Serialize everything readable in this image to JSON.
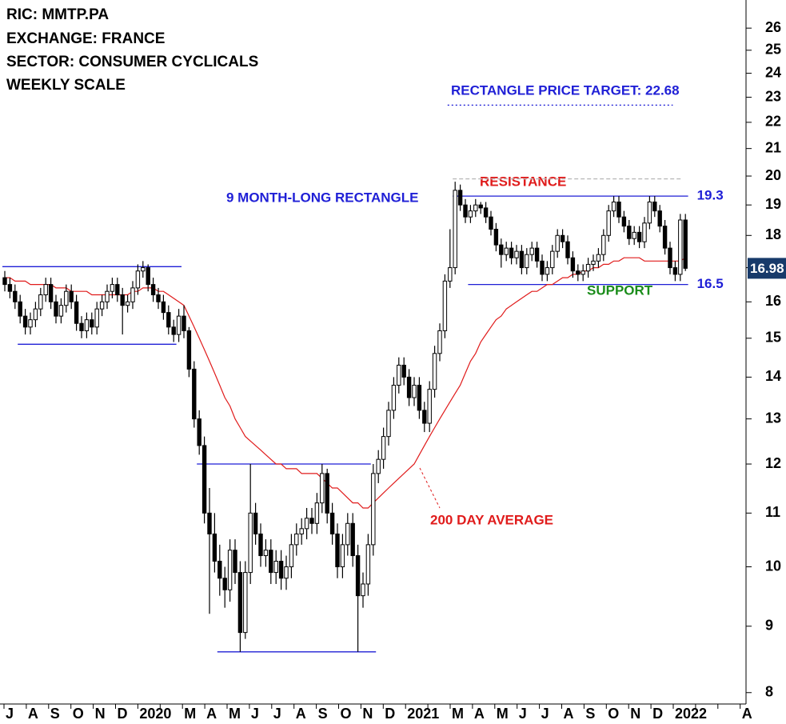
{
  "chart_data": {
    "type": "candlestick",
    "header": [
      "RIC: MMTP.PA",
      "EXCHANGE: FRANCE",
      "SECTOR: CONSUMER CYCLICALS",
      "WEEKLY SCALE"
    ],
    "annotations": [
      {
        "text": "RECTANGLE PRICE TARGET: 22.68",
        "color": "#1f1fd6"
      },
      {
        "text": "RESISTANCE",
        "color": "#e01b1b"
      },
      {
        "text": "9 MONTH-LONG RECTANGLE",
        "color": "#1f1fd6"
      },
      {
        "text": "SUPPORT",
        "color": "#1a8c1a"
      },
      {
        "text": "200 DAY AVERAGE",
        "color": "#e01b1b"
      }
    ],
    "log_scale": true,
    "ylim": [
      7.84,
      27.33
    ],
    "yticks": [
      8,
      9,
      10,
      11,
      12,
      13,
      14,
      15,
      16,
      17,
      18,
      19,
      20,
      21,
      22,
      23,
      24,
      25,
      26
    ],
    "months": [
      "J",
      "A",
      "S",
      "O",
      "N",
      "D",
      "2020",
      null,
      "M",
      "A",
      "M",
      "J",
      "J",
      "A",
      "S",
      "O",
      "N",
      "D",
      "2021",
      null,
      "M",
      "A",
      "M",
      "J",
      "J",
      "A",
      "S",
      "O",
      "N",
      "D",
      "2022",
      null,
      null,
      "A"
    ],
    "candle_colors": {
      "up": "#ffffff",
      "down": "#000000",
      "edge": "#000000"
    },
    "candles": [
      [
        16.7,
        16.9,
        16.3,
        16.5
      ],
      [
        16.5,
        16.7,
        16.1,
        16.3
      ],
      [
        16.3,
        16.5,
        15.8,
        16.0
      ],
      [
        16.0,
        16.2,
        15.4,
        15.6
      ],
      [
        15.6,
        15.8,
        15.1,
        15.3
      ],
      [
        15.3,
        15.7,
        15.1,
        15.5
      ],
      [
        15.5,
        16.0,
        15.3,
        15.8
      ],
      [
        15.8,
        16.4,
        15.6,
        16.2
      ],
      [
        16.2,
        16.7,
        16.0,
        16.5
      ],
      [
        16.5,
        16.7,
        15.8,
        16.0
      ],
      [
        16.0,
        16.2,
        15.4,
        15.6
      ],
      [
        15.6,
        16.1,
        15.4,
        15.9
      ],
      [
        15.9,
        16.5,
        15.7,
        16.3
      ],
      [
        16.3,
        16.5,
        15.8,
        16.0
      ],
      [
        16.0,
        16.2,
        15.2,
        15.4
      ],
      [
        15.4,
        15.6,
        15.0,
        15.2
      ],
      [
        15.2,
        15.7,
        15.0,
        15.5
      ],
      [
        15.5,
        15.7,
        15.1,
        15.3
      ],
      [
        15.3,
        16.0,
        15.1,
        15.8
      ],
      [
        15.8,
        16.2,
        15.6,
        16.0
      ],
      [
        16.0,
        16.5,
        15.8,
        16.3
      ],
      [
        16.3,
        16.7,
        16.1,
        16.5
      ],
      [
        16.5,
        16.7,
        16.0,
        16.2
      ],
      [
        16.2,
        16.4,
        15.1,
        15.9
      ],
      [
        15.9,
        16.2,
        15.7,
        16.0
      ],
      [
        16.0,
        16.6,
        15.8,
        16.4
      ],
      [
        16.4,
        17.1,
        16.2,
        16.9
      ],
      [
        16.9,
        17.2,
        16.7,
        17.0
      ],
      [
        17.0,
        17.1,
        16.3,
        16.5
      ],
      [
        16.5,
        16.7,
        16.0,
        16.2
      ],
      [
        16.2,
        16.4,
        15.8,
        16.0
      ],
      [
        16.0,
        16.2,
        15.5,
        15.7
      ],
      [
        15.7,
        15.9,
        15.1,
        15.3
      ],
      [
        15.3,
        15.5,
        14.9,
        15.1
      ],
      [
        15.1,
        15.8,
        14.9,
        15.6
      ],
      [
        15.6,
        15.9,
        15.0,
        15.2
      ],
      [
        15.2,
        15.3,
        14.0,
        14.2
      ],
      [
        14.2,
        14.4,
        12.8,
        13.0
      ],
      [
        13.0,
        13.2,
        12.2,
        12.4
      ],
      [
        12.4,
        12.6,
        10.8,
        11.0
      ],
      [
        11.0,
        11.5,
        9.2,
        10.6
      ],
      [
        10.6,
        11.0,
        9.9,
        10.1
      ],
      [
        10.1,
        10.4,
        9.5,
        9.8
      ],
      [
        9.8,
        10.0,
        9.3,
        9.6
      ],
      [
        9.6,
        10.5,
        9.4,
        10.3
      ],
      [
        10.3,
        10.5,
        9.7,
        9.9
      ],
      [
        9.9,
        10.1,
        8.6,
        8.9
      ],
      [
        8.9,
        10.1,
        8.8,
        9.9
      ],
      [
        9.9,
        12.0,
        9.7,
        11.0
      ],
      [
        11.0,
        11.2,
        10.4,
        10.6
      ],
      [
        10.6,
        10.8,
        10.0,
        10.2
      ],
      [
        10.2,
        10.5,
        10.0,
        10.3
      ],
      [
        10.3,
        10.5,
        9.7,
        9.9
      ],
      [
        9.9,
        10.3,
        9.7,
        10.1
      ],
      [
        10.1,
        10.3,
        9.6,
        9.8
      ],
      [
        9.8,
        10.2,
        9.6,
        10.0
      ],
      [
        10.0,
        10.6,
        9.8,
        10.4
      ],
      [
        10.4,
        10.8,
        10.2,
        10.6
      ],
      [
        10.6,
        10.9,
        10.4,
        10.7
      ],
      [
        10.7,
        11.1,
        10.5,
        10.9
      ],
      [
        10.9,
        11.1,
        10.6,
        10.8
      ],
      [
        10.8,
        11.4,
        10.6,
        11.2
      ],
      [
        11.2,
        12.0,
        11.0,
        11.8
      ],
      [
        11.8,
        11.9,
        10.8,
        11.0
      ],
      [
        11.0,
        11.2,
        10.4,
        10.6
      ],
      [
        10.6,
        10.8,
        9.8,
        10.0
      ],
      [
        10.0,
        10.6,
        9.8,
        10.4
      ],
      [
        10.4,
        11.0,
        10.2,
        10.8
      ],
      [
        10.8,
        11.0,
        10.0,
        10.2
      ],
      [
        10.2,
        10.4,
        8.6,
        9.5
      ],
      [
        9.5,
        9.9,
        9.3,
        9.7
      ],
      [
        9.7,
        10.6,
        9.5,
        10.4
      ],
      [
        10.4,
        12.0,
        10.2,
        11.8
      ],
      [
        11.8,
        12.3,
        11.6,
        12.1
      ],
      [
        12.1,
        12.8,
        11.9,
        12.6
      ],
      [
        12.6,
        13.4,
        12.4,
        13.2
      ],
      [
        13.2,
        14.0,
        13.0,
        13.8
      ],
      [
        13.8,
        14.5,
        13.6,
        14.3
      ],
      [
        14.3,
        14.5,
        13.8,
        14.0
      ],
      [
        14.0,
        14.2,
        13.3,
        13.5
      ],
      [
        13.5,
        14.0,
        13.3,
        13.8
      ],
      [
        13.8,
        14.0,
        13.0,
        13.2
      ],
      [
        13.2,
        13.4,
        12.7,
        12.9
      ],
      [
        12.9,
        13.9,
        12.7,
        13.7
      ],
      [
        13.7,
        14.8,
        13.5,
        14.6
      ],
      [
        14.6,
        15.4,
        14.4,
        15.2
      ],
      [
        15.2,
        16.8,
        15.0,
        16.6
      ],
      [
        16.6,
        18.2,
        16.4,
        17.0
      ],
      [
        17.0,
        19.8,
        16.8,
        19.5
      ],
      [
        19.5,
        19.7,
        18.8,
        19.0
      ],
      [
        19.0,
        19.2,
        18.4,
        18.6
      ],
      [
        18.6,
        19.0,
        18.4,
        18.8
      ],
      [
        18.8,
        19.2,
        18.6,
        19.0
      ],
      [
        19.0,
        19.1,
        18.7,
        18.9
      ],
      [
        18.9,
        19.1,
        18.4,
        18.6
      ],
      [
        18.6,
        18.8,
        18.0,
        18.2
      ],
      [
        18.2,
        18.4,
        17.5,
        17.7
      ],
      [
        17.7,
        17.9,
        17.0,
        17.4
      ],
      [
        17.4,
        17.8,
        17.2,
        17.6
      ],
      [
        17.6,
        17.8,
        17.1,
        17.3
      ],
      [
        17.3,
        17.7,
        17.1,
        17.5
      ],
      [
        17.5,
        17.7,
        16.8,
        17.0
      ],
      [
        17.0,
        17.6,
        16.8,
        17.4
      ],
      [
        17.4,
        17.8,
        17.2,
        17.6
      ],
      [
        17.6,
        17.8,
        17.0,
        17.2
      ],
      [
        17.2,
        17.4,
        16.6,
        16.8
      ],
      [
        16.8,
        17.2,
        16.6,
        17.0
      ],
      [
        17.0,
        17.7,
        16.8,
        17.5
      ],
      [
        17.5,
        18.2,
        17.3,
        18.0
      ],
      [
        18.0,
        18.2,
        17.6,
        17.8
      ],
      [
        17.8,
        18.0,
        17.1,
        17.3
      ],
      [
        17.3,
        17.5,
        16.7,
        16.9
      ],
      [
        16.9,
        17.1,
        16.6,
        16.8
      ],
      [
        16.8,
        17.1,
        16.6,
        16.9
      ],
      [
        16.9,
        17.3,
        16.7,
        17.1
      ],
      [
        17.1,
        17.4,
        16.9,
        17.2
      ],
      [
        17.2,
        17.6,
        17.0,
        17.4
      ],
      [
        17.4,
        18.2,
        17.2,
        18.0
      ],
      [
        18.0,
        19.0,
        17.8,
        18.8
      ],
      [
        18.8,
        19.3,
        18.6,
        19.1
      ],
      [
        19.1,
        19.3,
        18.4,
        18.6
      ],
      [
        18.6,
        18.8,
        18.1,
        18.3
      ],
      [
        18.3,
        18.5,
        17.7,
        17.9
      ],
      [
        17.9,
        18.3,
        17.7,
        18.1
      ],
      [
        18.1,
        18.3,
        17.6,
        17.8
      ],
      [
        17.8,
        18.6,
        17.6,
        18.4
      ],
      [
        18.4,
        19.3,
        18.2,
        19.1
      ],
      [
        19.1,
        19.3,
        18.6,
        18.8
      ],
      [
        18.8,
        19.0,
        18.1,
        18.3
      ],
      [
        18.3,
        18.5,
        17.4,
        17.6
      ],
      [
        17.6,
        17.8,
        16.8,
        17.0
      ],
      [
        17.0,
        17.2,
        16.6,
        16.8
      ],
      [
        16.8,
        18.7,
        16.6,
        18.5
      ],
      [
        18.5,
        18.7,
        16.9,
        16.98
      ]
    ],
    "moving_average": {
      "color": "#e01b1b",
      "values": [
        16.7,
        16.7,
        16.6,
        16.6,
        16.6,
        16.5,
        16.5,
        16.5,
        16.5,
        16.5,
        16.4,
        16.4,
        16.4,
        16.3,
        16.3,
        16.3,
        16.3,
        16.2,
        16.2,
        16.2,
        16.2,
        16.2,
        16.2,
        16.2,
        16.2,
        16.3,
        16.3,
        16.4,
        16.4,
        16.4,
        16.3,
        16.3,
        16.2,
        16.1,
        16.0,
        15.9,
        15.6,
        15.3,
        15.0,
        14.7,
        14.4,
        14.1,
        13.8,
        13.5,
        13.3,
        13.0,
        12.8,
        12.6,
        12.5,
        12.4,
        12.3,
        12.2,
        12.1,
        12.0,
        12.0,
        11.9,
        11.9,
        11.9,
        11.8,
        11.8,
        11.8,
        11.8,
        11.7,
        11.6,
        11.5,
        11.5,
        11.4,
        11.3,
        11.2,
        11.2,
        11.1,
        11.1,
        11.2,
        11.3,
        11.4,
        11.5,
        11.6,
        11.7,
        11.8,
        11.9,
        12.0,
        12.2,
        12.4,
        12.6,
        12.8,
        13.0,
        13.2,
        13.4,
        13.6,
        13.8,
        14.1,
        14.4,
        14.6,
        14.9,
        15.1,
        15.3,
        15.5,
        15.6,
        15.8,
        15.9,
        16.0,
        16.1,
        16.2,
        16.3,
        16.3,
        16.4,
        16.5,
        16.5,
        16.6,
        16.7,
        16.7,
        16.8,
        16.8,
        16.9,
        16.9,
        17.0,
        17.0,
        17.1,
        17.1,
        17.2,
        17.2,
        17.3,
        17.3,
        17.3,
        17.3,
        17.2,
        17.2,
        17.2,
        17.2,
        17.2,
        17.2,
        17.2,
        17.2,
        17.3
      ]
    },
    "levels": [
      {
        "value": 17.03,
        "start": 0,
        "end": 35,
        "style": "solid",
        "color": "#1f1fd6",
        "labeled": false
      },
      {
        "value": 14.84,
        "start": 3,
        "end": 34,
        "style": "solid",
        "color": "#1f1fd6",
        "labeled": false
      },
      {
        "value": 12.0,
        "start": 38,
        "end": 72,
        "style": "solid",
        "color": "#1f1fd6",
        "labeled": false
      },
      {
        "value": 8.6,
        "start": 42,
        "end": 73,
        "style": "solid",
        "color": "#1f1fd6",
        "labeled": false
      },
      {
        "value": 19.3,
        "start": 88,
        "end": 134,
        "style": "solid",
        "color": "#1f1fd6",
        "labeled": true
      },
      {
        "value": 16.5,
        "start": 91,
        "end": 134,
        "style": "solid",
        "color": "#1f1fd6",
        "labeled": true
      },
      {
        "value": 19.9,
        "start": 88,
        "end": 133,
        "style": "dashed",
        "color": "#bbbbbb",
        "labeled": false
      },
      {
        "value": 22.68,
        "start": 87,
        "end": 131,
        "style": "dotted",
        "color": "#1f1fd6",
        "labeled": false
      }
    ]
  }
}
